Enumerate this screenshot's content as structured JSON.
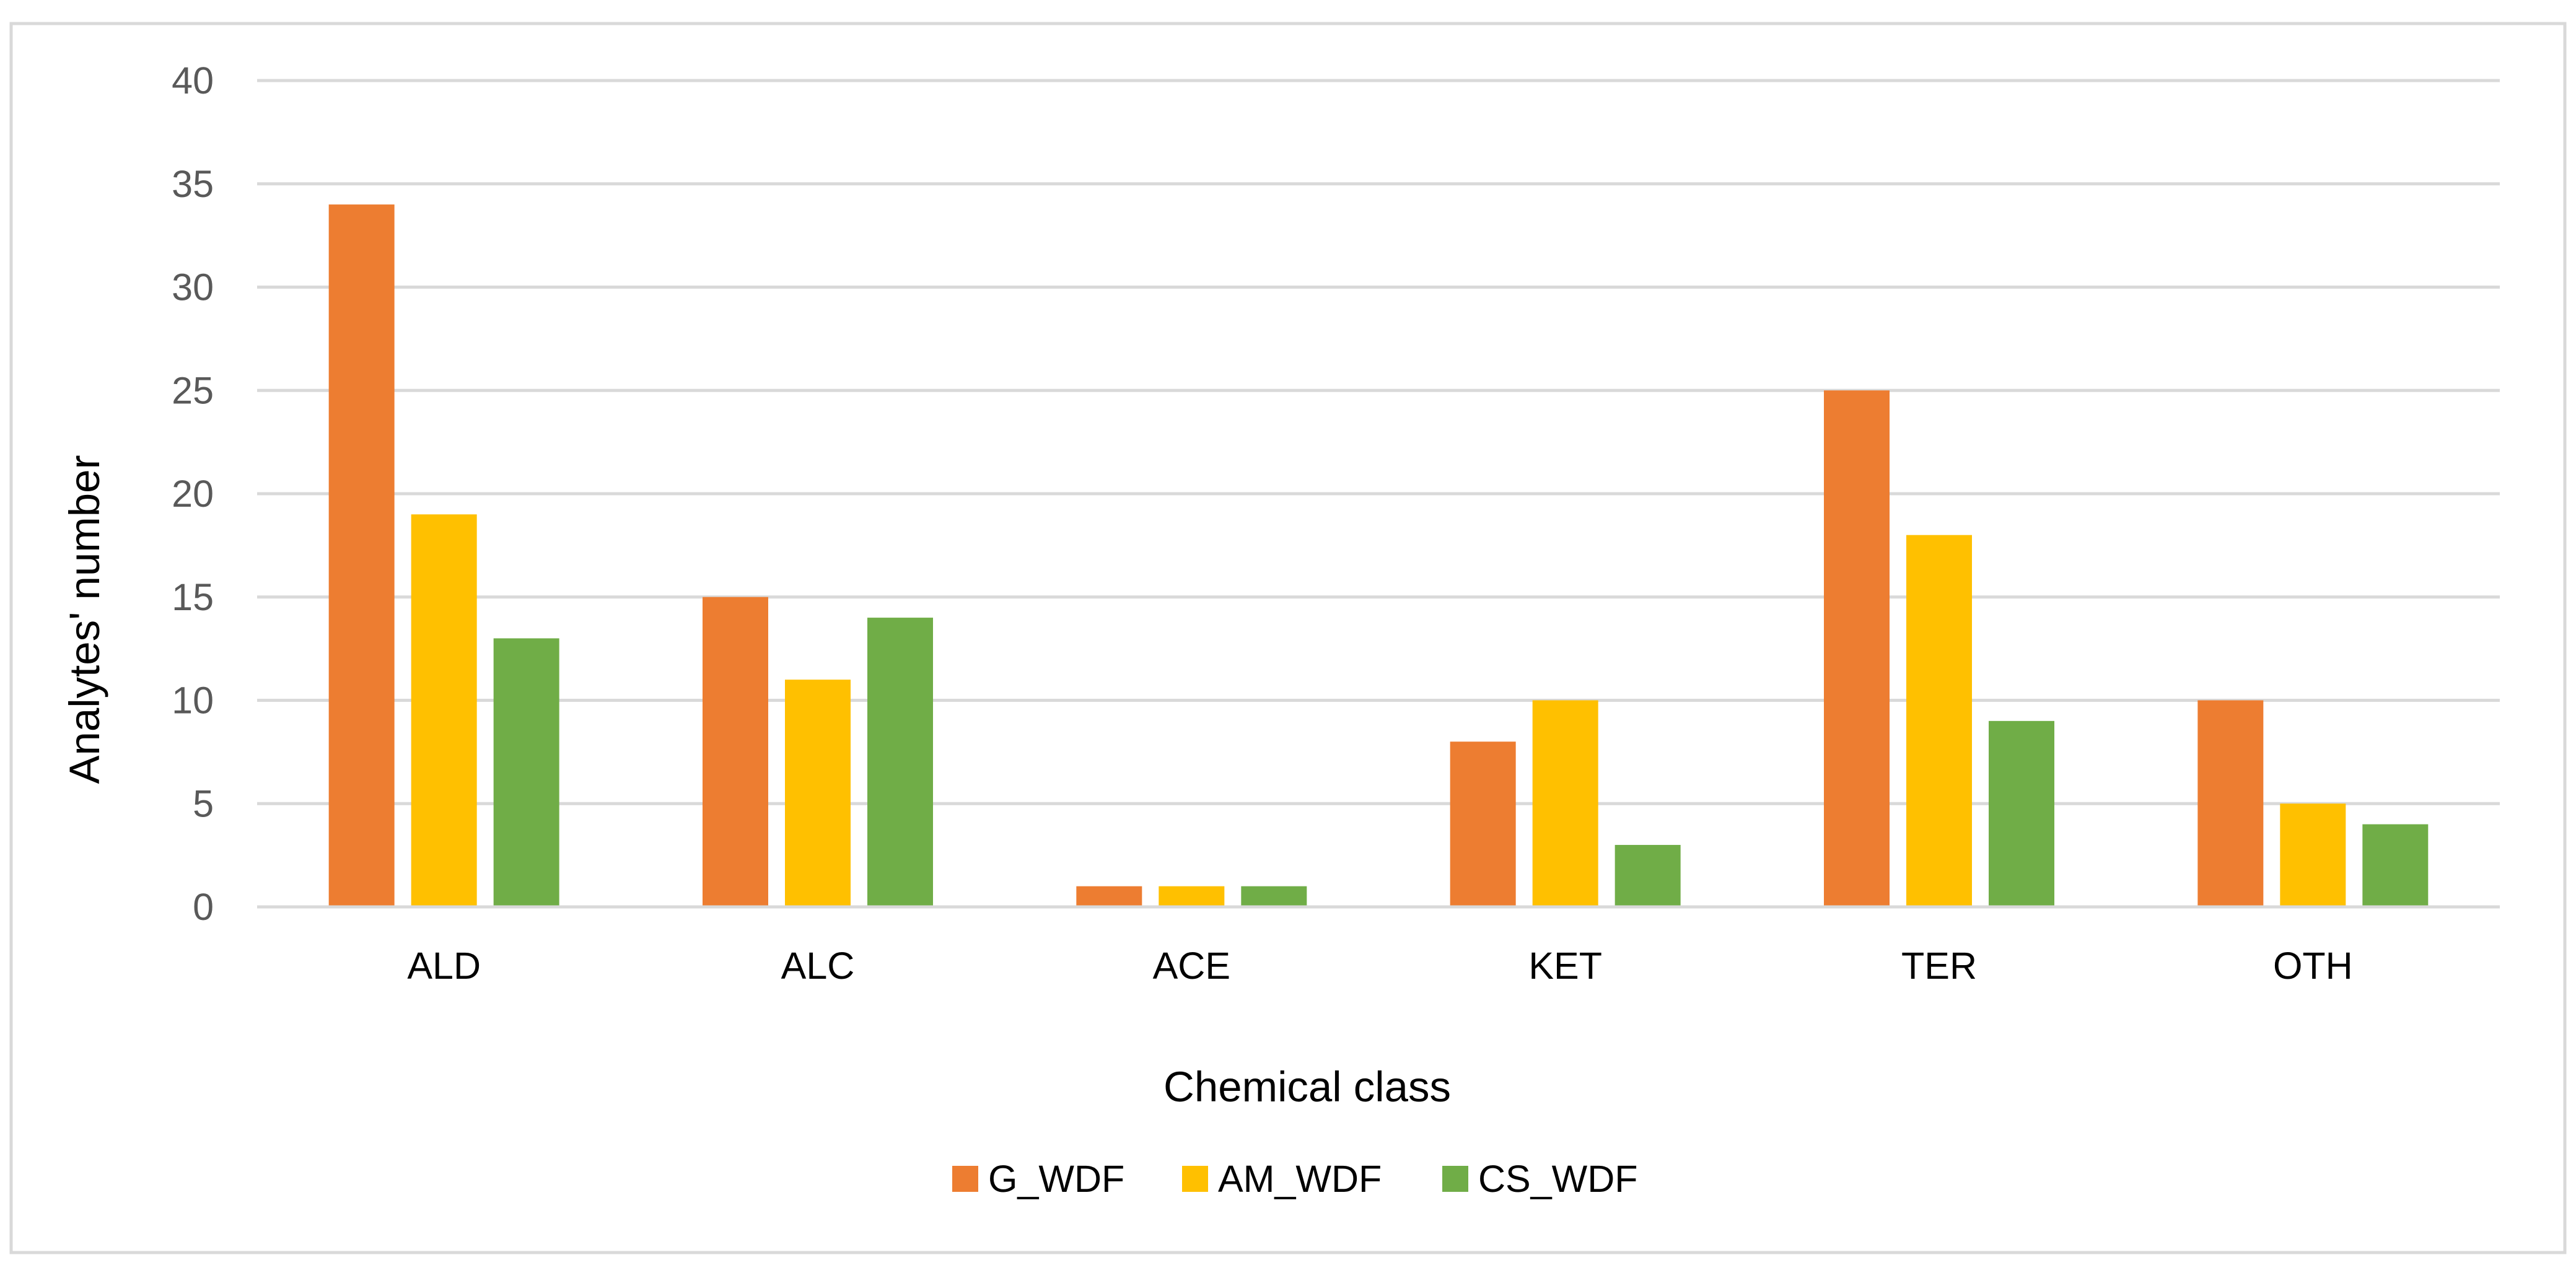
{
  "chart_data": {
    "type": "bar",
    "title": "",
    "xlabel": "Chemical class",
    "ylabel": "Analytes' number",
    "categories": [
      "ALD",
      "ALC",
      "ACE",
      "KET",
      "TER",
      "OTH"
    ],
    "series": [
      {
        "name": "G_WDF",
        "color": "#ED7D31",
        "values": [
          34,
          15,
          1,
          8,
          25,
          10
        ]
      },
      {
        "name": "AM_WDF",
        "color": "#FFC000",
        "values": [
          19,
          11,
          1,
          10,
          18,
          5
        ]
      },
      {
        "name": "CS_WDF",
        "color": "#70AD47",
        "values": [
          13,
          14,
          1,
          3,
          9,
          4
        ]
      }
    ],
    "ylim": [
      0,
      40
    ],
    "yticks": [
      0,
      5,
      10,
      15,
      20,
      25,
      30,
      35,
      40
    ],
    "grid": true,
    "legend_position": "bottom"
  },
  "colors": {
    "gridline": "#D9D9D9",
    "border": "#D9D9D9",
    "tick_text": "#595959"
  }
}
